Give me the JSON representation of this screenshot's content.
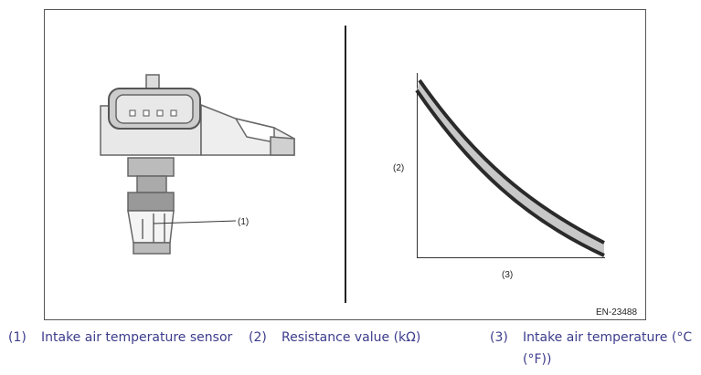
{
  "figure": {
    "callout_1": "(1)",
    "axis_y_label": "(2)",
    "axis_x_label": "(3)",
    "figure_code": "EN-23488"
  },
  "legend": [
    {
      "num": "(1)",
      "text": "Intake air temperature sensor"
    },
    {
      "num": "(2)",
      "text": "Resistance value (kΩ)"
    },
    {
      "num": "(3)",
      "text": "Intake air temperature (°C",
      "text_cont": "(°F))"
    }
  ],
  "colors": {
    "caption": "#3c3c8c",
    "band_fill": "#c8c8c8",
    "line": "#2a2a2a"
  }
}
